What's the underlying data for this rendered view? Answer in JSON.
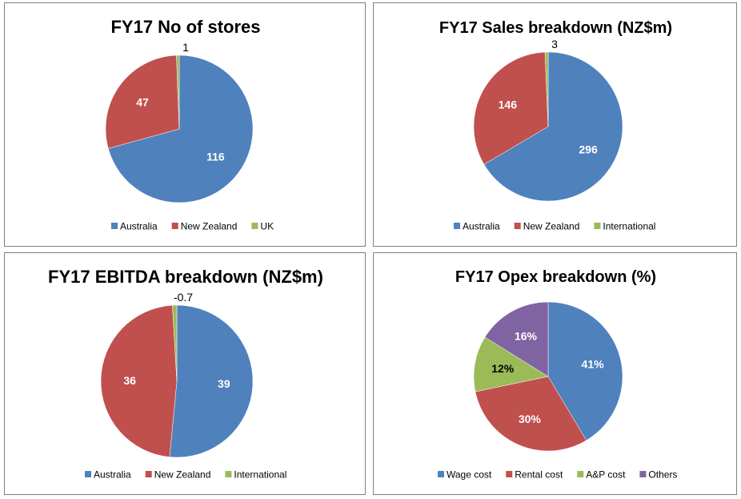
{
  "chart_data": [
    {
      "type": "pie",
      "title": "FY17 No of stores",
      "categories": [
        "Australia",
        "New Zealand",
        "UK"
      ],
      "values": [
        116,
        47,
        1
      ],
      "data_labels": [
        "116",
        "47",
        "1"
      ],
      "colors": [
        "#4f81bd",
        "#c0504d",
        "#9bbb59"
      ],
      "legend": "bottom"
    },
    {
      "type": "pie",
      "title": "FY17 Sales breakdown (NZ$m)",
      "categories": [
        "Australia",
        "New Zealand",
        "International"
      ],
      "values": [
        296,
        146,
        3
      ],
      "data_labels": [
        "296",
        "146",
        "3"
      ],
      "colors": [
        "#4f81bd",
        "#c0504d",
        "#9bbb59"
      ],
      "legend": "bottom"
    },
    {
      "type": "pie",
      "title": "FY17 EBITDA breakdown (NZ$m)",
      "categories": [
        "Australia",
        "New Zealand",
        "International"
      ],
      "values": [
        39,
        36,
        -0.7
      ],
      "data_labels": [
        "39",
        "36",
        "-0.7"
      ],
      "colors": [
        "#4f81bd",
        "#c0504d",
        "#9bbb59"
      ],
      "legend": "bottom"
    },
    {
      "type": "pie",
      "title": "FY17 Opex breakdown (%)",
      "categories": [
        "Wage cost",
        "Rental cost",
        "A&P cost",
        "Others"
      ],
      "values": [
        41,
        30,
        12,
        16
      ],
      "data_labels": [
        "41%",
        "30%",
        "12%",
        "16%"
      ],
      "colors": [
        "#4f81bd",
        "#c0504d",
        "#9bbb59",
        "#8064a2"
      ],
      "legend": "bottom"
    }
  ]
}
